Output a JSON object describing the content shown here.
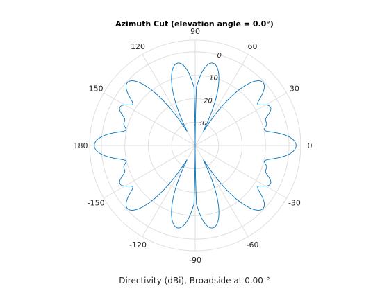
{
  "chart_data": {
    "type": "line",
    "subtype": "polar",
    "title": "Azimuth Cut (elevation angle = 0.0°)",
    "xlabel": "Directivity (dBi), Broadside at 0.00 °",
    "angle_ticks": [
      "0",
      "30",
      "60",
      "90",
      "120",
      "150",
      "180",
      "-150",
      "-120",
      "-90",
      "-60",
      "-30"
    ],
    "angle_tick_values_deg": [
      0,
      30,
      60,
      90,
      120,
      150,
      180,
      -150,
      -120,
      -90,
      -60,
      -30
    ],
    "radial_ticks": [
      "0",
      "10",
      "20",
      "30"
    ],
    "radial_tick_values_db": [
      0,
      -10,
      -20,
      -30
    ],
    "rlim_db": [
      -40,
      5
    ],
    "grid": true,
    "series": [
      {
        "color": "#0072bd",
        "lobes": [
          {
            "center_deg": 0,
            "peak_db": 3.0,
            "width_deg": 7
          },
          {
            "center_deg": 17,
            "peak_db": -8.5,
            "width_deg": 5
          },
          {
            "center_deg": 27,
            "peak_db": -4.0,
            "width_deg": 5.5
          },
          {
            "center_deg": 43,
            "peak_db": -0.5,
            "width_deg": 6.5
          },
          {
            "center_deg": 78,
            "peak_db": -4.0,
            "width_deg": 7
          },
          {
            "center_deg": 102,
            "peak_db": -4.0,
            "width_deg": 7
          },
          {
            "center_deg": 137,
            "peak_db": -0.5,
            "width_deg": 6.5
          },
          {
            "center_deg": 153,
            "peak_db": -4.0,
            "width_deg": 5.5
          },
          {
            "center_deg": 163,
            "peak_db": -8.5,
            "width_deg": 5
          },
          {
            "center_deg": 180,
            "peak_db": 3.0,
            "width_deg": 7
          },
          {
            "center_deg": -163,
            "peak_db": -8.5,
            "width_deg": 5
          },
          {
            "center_deg": -153,
            "peak_db": -4.0,
            "width_deg": 5.5
          },
          {
            "center_deg": -137,
            "peak_db": -0.5,
            "width_deg": 6.5
          },
          {
            "center_deg": -102,
            "peak_db": -4.0,
            "width_deg": 7
          },
          {
            "center_deg": -78,
            "peak_db": -4.0,
            "width_deg": 7
          },
          {
            "center_deg": -43,
            "peak_db": -0.5,
            "width_deg": 6.5
          },
          {
            "center_deg": -27,
            "peak_db": -4.0,
            "width_deg": 5.5
          },
          {
            "center_deg": -17,
            "peak_db": -8.5,
            "width_deg": 5
          }
        ]
      }
    ]
  }
}
